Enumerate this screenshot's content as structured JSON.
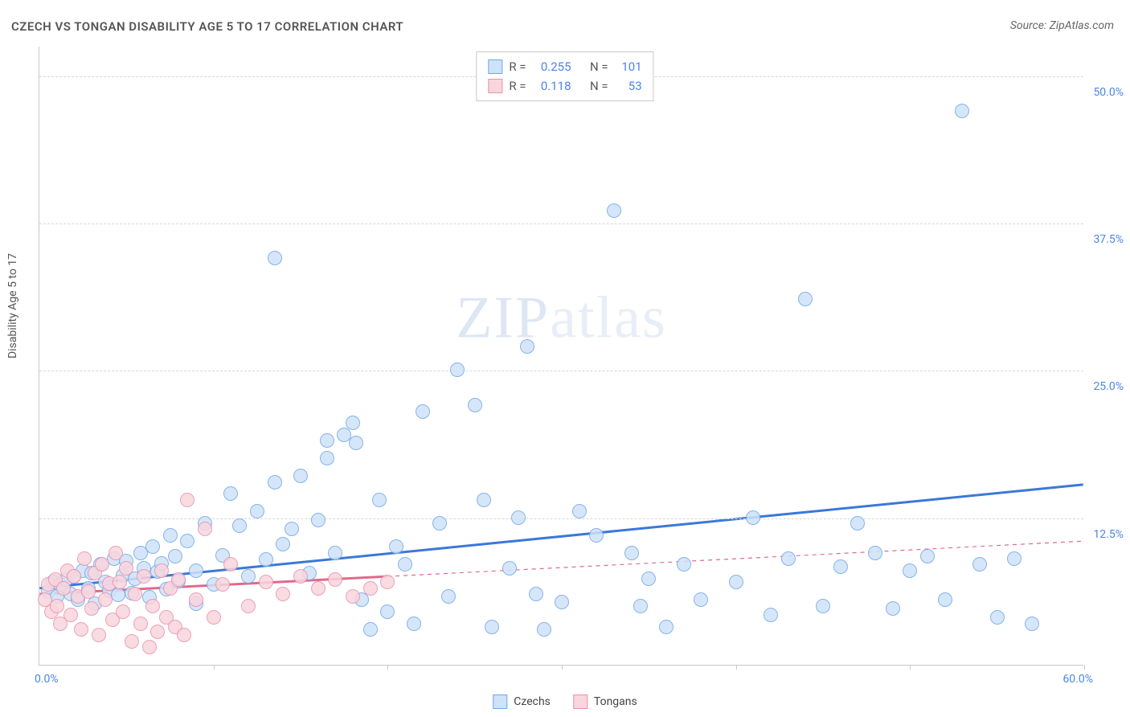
{
  "title": "CZECH VS TONGAN DISABILITY AGE 5 TO 17 CORRELATION CHART",
  "source": "Source: ZipAtlas.com",
  "watermark_a": "ZIP",
  "watermark_b": "atlas",
  "y_axis_title": "Disability Age 5 to 17",
  "chart": {
    "type": "scatter",
    "xlim": [
      0,
      60
    ],
    "ylim": [
      0,
      52.5
    ],
    "x_label_min": "0.0%",
    "x_label_max": "60.0%",
    "x_ticks": [
      10,
      20,
      30,
      40,
      50,
      60
    ],
    "y_gridlines": [
      {
        "v": 12.5,
        "label": "12.5%"
      },
      {
        "v": 25.0,
        "label": "25.0%"
      },
      {
        "v": 37.5,
        "label": "37.5%"
      },
      {
        "v": 50.0,
        "label": "50.0%"
      }
    ],
    "background": "#ffffff",
    "grid_color": "#d8d8d8",
    "axis_color": "#c9c9c9",
    "tick_label_color": "#4a86e8",
    "marker_radius": 9,
    "marker_border_width": 1.2,
    "trend_line_width": 3,
    "series": [
      {
        "name": "Czechs",
        "fill": "#cfe2f8",
        "stroke": "#6fa8e8",
        "trend_stroke": "#3b78d8",
        "trend_solid_xmax": 60,
        "trend": {
          "y0": 6.5,
          "y60": 15.3
        },
        "stats": {
          "R": "0.255",
          "N": "101"
        },
        "points": [
          [
            0.5,
            6.2
          ],
          [
            0.8,
            7.0
          ],
          [
            1.0,
            5.8
          ],
          [
            1.2,
            6.8
          ],
          [
            1.5,
            7.2
          ],
          [
            1.8,
            6.0
          ],
          [
            2.0,
            7.5
          ],
          [
            2.2,
            5.5
          ],
          [
            2.5,
            8.0
          ],
          [
            2.8,
            6.5
          ],
          [
            3.0,
            7.8
          ],
          [
            3.2,
            5.2
          ],
          [
            3.5,
            8.5
          ],
          [
            3.8,
            7.0
          ],
          [
            4.0,
            6.3
          ],
          [
            4.3,
            9.0
          ],
          [
            4.5,
            5.9
          ],
          [
            4.8,
            7.6
          ],
          [
            5.0,
            8.8
          ],
          [
            5.3,
            6.1
          ],
          [
            5.5,
            7.3
          ],
          [
            5.8,
            9.5
          ],
          [
            6.0,
            8.2
          ],
          [
            6.3,
            5.7
          ],
          [
            6.5,
            10.0
          ],
          [
            6.8,
            7.9
          ],
          [
            7.0,
            8.6
          ],
          [
            7.3,
            6.4
          ],
          [
            7.5,
            11.0
          ],
          [
            7.8,
            9.2
          ],
          [
            8.0,
            7.1
          ],
          [
            8.5,
            10.5
          ],
          [
            9.0,
            8.0
          ],
          [
            9.5,
            12.0
          ],
          [
            10.0,
            6.8
          ],
          [
            10.5,
            9.3
          ],
          [
            11.0,
            14.5
          ],
          [
            11.5,
            11.8
          ],
          [
            12.0,
            7.5
          ],
          [
            12.5,
            13.0
          ],
          [
            13.0,
            8.9
          ],
          [
            13.5,
            15.5
          ],
          [
            14.0,
            10.2
          ],
          [
            14.5,
            11.5
          ],
          [
            15.0,
            16.0
          ],
          [
            15.5,
            7.8
          ],
          [
            16.0,
            12.3
          ],
          [
            16.5,
            19.0
          ],
          [
            17.0,
            9.5
          ],
          [
            17.5,
            19.5
          ],
          [
            18.0,
            20.5
          ],
          [
            18.5,
            5.5
          ],
          [
            19.0,
            3.0
          ],
          [
            19.5,
            14.0
          ],
          [
            20.0,
            4.5
          ],
          [
            20.5,
            10.0
          ],
          [
            21.0,
            8.5
          ],
          [
            21.5,
            3.5
          ],
          [
            22.0,
            21.5
          ],
          [
            23.0,
            12.0
          ],
          [
            23.5,
            5.8
          ],
          [
            24.0,
            25.0
          ],
          [
            25.0,
            22.0
          ],
          [
            25.5,
            14.0
          ],
          [
            26.0,
            3.2
          ],
          [
            27.0,
            8.2
          ],
          [
            27.5,
            12.5
          ],
          [
            28.0,
            27.0
          ],
          [
            28.5,
            6.0
          ],
          [
            29.0,
            3.0
          ],
          [
            30.0,
            5.3
          ],
          [
            31.0,
            13.0
          ],
          [
            32.0,
            11.0
          ],
          [
            33.0,
            38.5
          ],
          [
            34.0,
            9.5
          ],
          [
            34.5,
            5.0
          ],
          [
            35.0,
            7.3
          ],
          [
            36.0,
            3.2
          ],
          [
            37.0,
            8.5
          ],
          [
            38.0,
            5.5
          ],
          [
            40.0,
            7.0
          ],
          [
            41.0,
            12.5
          ],
          [
            42.0,
            4.2
          ],
          [
            43.0,
            9.0
          ],
          [
            44.0,
            31.0
          ],
          [
            45.0,
            5.0
          ],
          [
            46.0,
            8.3
          ],
          [
            47.0,
            12.0
          ],
          [
            48.0,
            9.5
          ],
          [
            49.0,
            4.8
          ],
          [
            50.0,
            8.0
          ],
          [
            51.0,
            9.2
          ],
          [
            52.0,
            5.5
          ],
          [
            53.0,
            47.0
          ],
          [
            54.0,
            8.5
          ],
          [
            55.0,
            4.0
          ],
          [
            56.0,
            9.0
          ],
          [
            57.0,
            3.5
          ],
          [
            13.5,
            34.5
          ],
          [
            16.5,
            17.5
          ],
          [
            18.2,
            18.8
          ],
          [
            9.0,
            5.2
          ]
        ]
      },
      {
        "name": "Tongans",
        "fill": "#f9d5de",
        "stroke": "#e991ab",
        "trend_stroke": "#e06a8c",
        "trend_solid_xmax": 20,
        "trend": {
          "y0": 6.0,
          "y60": 10.5
        },
        "stats": {
          "R": "0.118",
          "N": "53"
        },
        "points": [
          [
            0.3,
            5.5
          ],
          [
            0.5,
            6.8
          ],
          [
            0.7,
            4.5
          ],
          [
            0.9,
            7.2
          ],
          [
            1.0,
            5.0
          ],
          [
            1.2,
            3.5
          ],
          [
            1.4,
            6.5
          ],
          [
            1.6,
            8.0
          ],
          [
            1.8,
            4.2
          ],
          [
            2.0,
            7.5
          ],
          [
            2.2,
            5.8
          ],
          [
            2.4,
            3.0
          ],
          [
            2.6,
            9.0
          ],
          [
            2.8,
            6.2
          ],
          [
            3.0,
            4.8
          ],
          [
            3.2,
            7.8
          ],
          [
            3.4,
            2.5
          ],
          [
            3.6,
            8.5
          ],
          [
            3.8,
            5.5
          ],
          [
            4.0,
            6.9
          ],
          [
            4.2,
            3.8
          ],
          [
            4.4,
            9.5
          ],
          [
            4.6,
            7.0
          ],
          [
            4.8,
            4.5
          ],
          [
            5.0,
            8.2
          ],
          [
            5.3,
            2.0
          ],
          [
            5.5,
            6.0
          ],
          [
            5.8,
            3.5
          ],
          [
            6.0,
            7.5
          ],
          [
            6.3,
            1.5
          ],
          [
            6.5,
            5.0
          ],
          [
            6.8,
            2.8
          ],
          [
            7.0,
            8.0
          ],
          [
            7.3,
            4.0
          ],
          [
            7.5,
            6.5
          ],
          [
            7.8,
            3.2
          ],
          [
            8.0,
            7.2
          ],
          [
            8.3,
            2.5
          ],
          [
            8.5,
            14.0
          ],
          [
            9.0,
            5.5
          ],
          [
            9.5,
            11.5
          ],
          [
            10.0,
            4.0
          ],
          [
            10.5,
            6.8
          ],
          [
            11.0,
            8.5
          ],
          [
            12.0,
            5.0
          ],
          [
            13.0,
            7.0
          ],
          [
            14.0,
            6.0
          ],
          [
            15.0,
            7.5
          ],
          [
            16.0,
            6.5
          ],
          [
            17.0,
            7.2
          ],
          [
            18.0,
            5.8
          ],
          [
            19.0,
            6.5
          ],
          [
            20.0,
            7.0
          ]
        ]
      }
    ]
  },
  "legend_bottom": [
    {
      "label": "Czechs",
      "fill": "#cfe2f8",
      "stroke": "#6fa8e8"
    },
    {
      "label": "Tongans",
      "fill": "#f9d5de",
      "stroke": "#e991ab"
    }
  ]
}
